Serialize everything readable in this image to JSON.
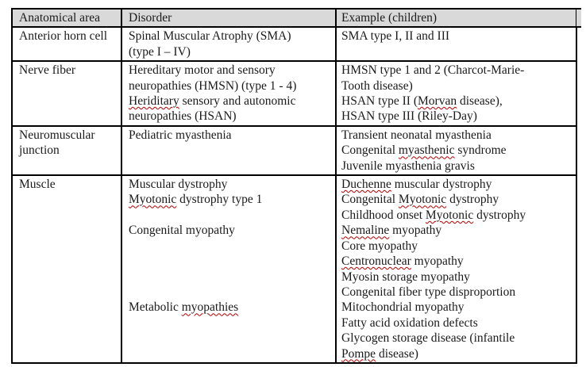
{
  "colors": {
    "header_bg": "#d9d9d9",
    "border": "#000000",
    "text": "#1a1a1a",
    "misspell": "#b30000"
  },
  "table": {
    "header": {
      "cols": [
        "Anatomical area",
        "Disorder",
        "Example (children)"
      ]
    },
    "rows": [
      {
        "area": [
          [
            {
              "t": "Anterior horn cell"
            }
          ]
        ],
        "disorder": [
          [
            {
              "t": "Spinal Muscular Atrophy (SMA)"
            }
          ],
          [
            {
              "t": "(type I – IV)"
            }
          ]
        ],
        "example": [
          [
            {
              "t": "SMA type I, II and III"
            }
          ]
        ]
      },
      {
        "area": [
          [
            {
              "t": "Nerve fiber"
            }
          ]
        ],
        "disorder": [
          [
            {
              "t": "Hereditary motor and sensory"
            }
          ],
          [
            {
              "t": "neuropathies (HMSN) (type 1 - 4)"
            }
          ],
          [
            {
              "t": "Heriditary",
              "w": true
            },
            {
              "t": " sensory and autonomic"
            }
          ],
          [
            {
              "t": "neuropathies (HSAN)"
            }
          ]
        ],
        "example": [
          [
            {
              "t": "HMSN type 1 and 2 (Charcot-Marie-"
            }
          ],
          [
            {
              "t": "Tooth disease)"
            }
          ],
          [
            {
              "t": "HSAN type II ("
            },
            {
              "t": "Morvan",
              "w": true
            },
            {
              "t": " disease),"
            }
          ],
          [
            {
              "t": "HSAN type III (Riley-Day)"
            }
          ]
        ]
      },
      {
        "area": [
          [
            {
              "t": "Neuromuscular"
            }
          ],
          [
            {
              "t": "junction"
            }
          ]
        ],
        "disorder": [
          [
            {
              "t": "Pediatric myasthenia"
            }
          ]
        ],
        "example": [
          [
            {
              "t": "Transient neonatal myasthenia"
            }
          ],
          [
            {
              "t": "Congenital "
            },
            {
              "t": "myasthenic",
              "w": true
            },
            {
              "t": " syndrome"
            }
          ],
          [
            {
              "t": "Juvenile myasthenia gravis"
            }
          ]
        ]
      },
      {
        "area": [
          [
            {
              "t": "Muscle"
            }
          ]
        ],
        "disorder": [
          [
            {
              "t": "Muscular dystrophy"
            }
          ],
          [
            {
              "t": "Myotonic",
              "w": true
            },
            {
              "t": " dystrophy type 1"
            }
          ],
          [],
          [
            {
              "t": "Congenital myopathy"
            }
          ],
          [],
          [],
          [],
          [],
          [
            {
              "t": "Metabolic "
            },
            {
              "t": "myopathies",
              "w": true
            }
          ]
        ],
        "example": [
          [
            {
              "t": "Duchenne",
              "w": true
            },
            {
              "t": " muscular dystrophy"
            }
          ],
          [
            {
              "t": "Congenital "
            },
            {
              "t": "Myotonic",
              "w": true
            },
            {
              "t": " dystrophy"
            }
          ],
          [
            {
              "t": "Childhood onset "
            },
            {
              "t": "Myotonic",
              "w": true
            },
            {
              "t": " dystrophy"
            }
          ],
          [
            {
              "t": "Nemaline",
              "w": true
            },
            {
              "t": " myopathy"
            }
          ],
          [
            {
              "t": "Core myopathy"
            }
          ],
          [
            {
              "t": "Centronuclear",
              "w": true
            },
            {
              "t": " myopathy"
            }
          ],
          [
            {
              "t": "Myosin storage myopathy"
            }
          ],
          [
            {
              "t": "Congenital fiber type disproportion"
            }
          ],
          [
            {
              "t": "Mitochondrial myopathy"
            }
          ],
          [
            {
              "t": "Fatty acid oxidation defects"
            }
          ],
          [
            {
              "t": "Glycogen storage disease (infantile"
            }
          ],
          [
            {
              "t": "Pompe",
              "w": true
            },
            {
              "t": " disease)"
            }
          ]
        ]
      }
    ]
  }
}
